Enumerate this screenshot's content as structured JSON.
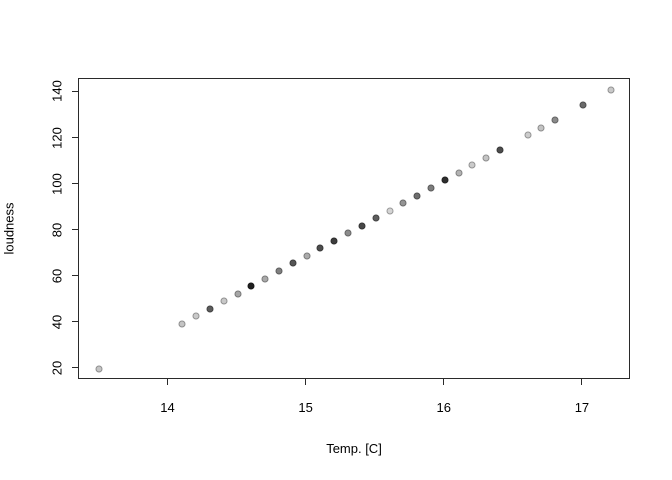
{
  "figure": {
    "background": "#ffffff",
    "box_color": "#2a2a2a"
  },
  "chart_data": {
    "type": "scatter",
    "title": "",
    "xlabel": "Temp. [C]",
    "ylabel": "loudness",
    "x_ticks": [
      14,
      15,
      16,
      17
    ],
    "y_ticks": [
      20,
      40,
      60,
      80,
      100,
      120,
      140
    ],
    "xlim": [
      13.352,
      17.348
    ],
    "ylim": [
      15.16,
      145.84
    ],
    "grid": false,
    "legend": null,
    "marker": "filled-circle",
    "points": [
      {
        "x": 13.5,
        "y": 20.0,
        "color": "#c5c5c5"
      },
      {
        "x": 14.1,
        "y": 39.6,
        "color": "#c4c4c4"
      },
      {
        "x": 14.2,
        "y": 42.9,
        "color": "#c9c9c9"
      },
      {
        "x": 14.3,
        "y": 46.2,
        "color": "#5c5c5c"
      },
      {
        "x": 14.4,
        "y": 49.4,
        "color": "#c8c8c8"
      },
      {
        "x": 14.5,
        "y": 52.7,
        "color": "#a6a6a6"
      },
      {
        "x": 14.6,
        "y": 56.0,
        "color": "#1f1f1f"
      },
      {
        "x": 14.7,
        "y": 59.2,
        "color": "#a9a9a9"
      },
      {
        "x": 14.8,
        "y": 62.5,
        "color": "#808080"
      },
      {
        "x": 14.9,
        "y": 65.8,
        "color": "#555555"
      },
      {
        "x": 15.0,
        "y": 69.1,
        "color": "#ababab"
      },
      {
        "x": 15.1,
        "y": 72.3,
        "color": "#4d4d4d"
      },
      {
        "x": 15.2,
        "y": 75.6,
        "color": "#3d3d3d"
      },
      {
        "x": 15.3,
        "y": 78.9,
        "color": "#8c8c8c"
      },
      {
        "x": 15.4,
        "y": 82.1,
        "color": "#474747"
      },
      {
        "x": 15.5,
        "y": 85.4,
        "color": "#5e5e5e"
      },
      {
        "x": 15.6,
        "y": 88.7,
        "color": "#d4d4d4"
      },
      {
        "x": 15.7,
        "y": 92.0,
        "color": "#949494"
      },
      {
        "x": 15.8,
        "y": 95.2,
        "color": "#6e6e6e"
      },
      {
        "x": 15.9,
        "y": 98.5,
        "color": "#7d7d7d"
      },
      {
        "x": 16.0,
        "y": 101.8,
        "color": "#2e2e2e"
      },
      {
        "x": 16.1,
        "y": 105.0,
        "color": "#b3b3b3"
      },
      {
        "x": 16.2,
        "y": 108.3,
        "color": "#cbcbcb"
      },
      {
        "x": 16.3,
        "y": 111.6,
        "color": "#c4c4c4"
      },
      {
        "x": 16.4,
        "y": 114.9,
        "color": "#4d4d4d"
      },
      {
        "x": 16.6,
        "y": 121.4,
        "color": "#cccccc"
      },
      {
        "x": 16.7,
        "y": 124.7,
        "color": "#c3c3c3"
      },
      {
        "x": 16.8,
        "y": 127.9,
        "color": "#8a8a8a"
      },
      {
        "x": 17.0,
        "y": 134.5,
        "color": "#6b6b6b"
      },
      {
        "x": 17.2,
        "y": 141.0,
        "color": "#c9c9c9"
      }
    ]
  }
}
